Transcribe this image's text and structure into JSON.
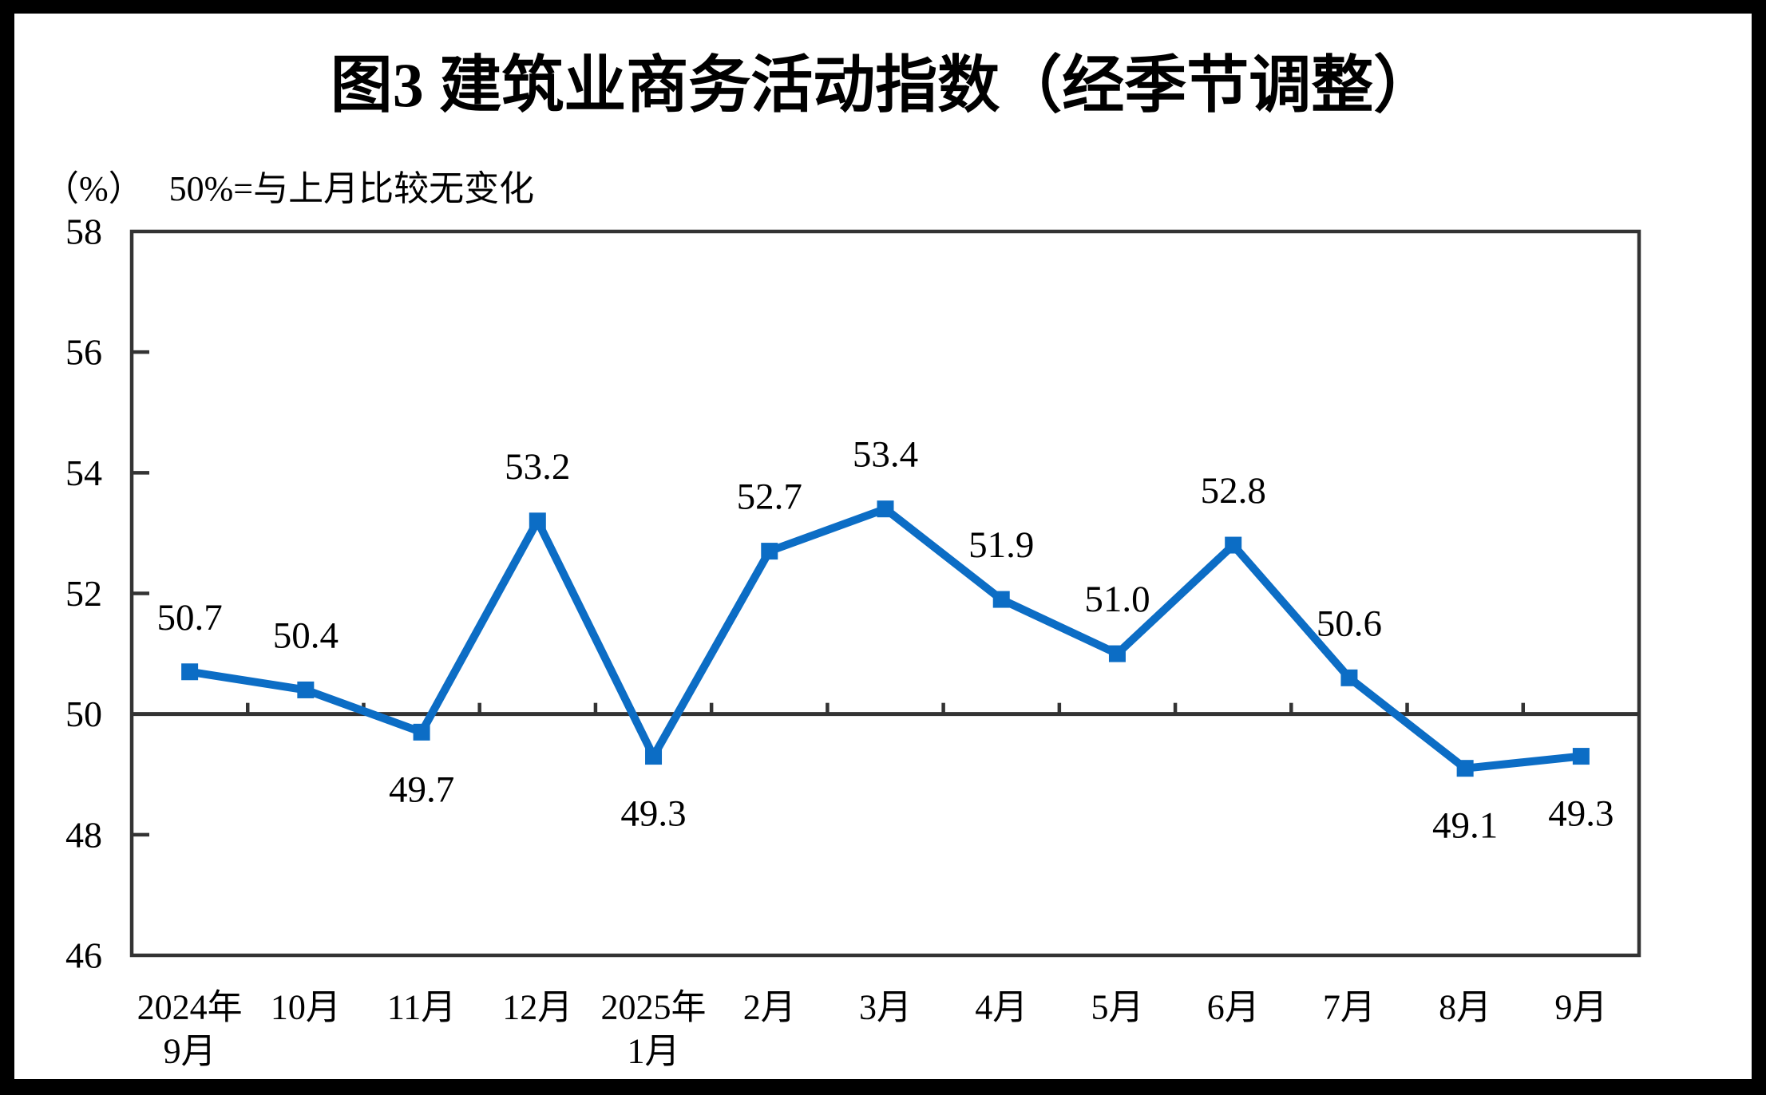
{
  "header": {
    "title": "图3  建筑业商务活动指数（经季节调整）",
    "unit": "（%）",
    "note": "50%=与上月比较无变化"
  },
  "chart_data": {
    "type": "line",
    "title": "图3  建筑业商务活动指数（经季节调整）",
    "unit_label": "（%）",
    "annotation": "50%=与上月比较无变化",
    "categories": [
      [
        "2024年",
        "9月"
      ],
      [
        "10月"
      ],
      [
        "11月"
      ],
      [
        "12月"
      ],
      [
        "2025年",
        "1月"
      ],
      [
        "2月"
      ],
      [
        "3月"
      ],
      [
        "4月"
      ],
      [
        "5月"
      ],
      [
        "6月"
      ],
      [
        "7月"
      ],
      [
        "8月"
      ],
      [
        "9月"
      ]
    ],
    "series": [
      {
        "name": "建筑业商务活动指数",
        "values": [
          50.7,
          50.4,
          49.7,
          53.2,
          49.3,
          52.7,
          53.4,
          51.9,
          51.0,
          52.8,
          50.6,
          49.1,
          49.3
        ],
        "color": "#0C6DC5",
        "marker": "square"
      }
    ],
    "data_label_positions": [
      "above",
      "above",
      "below",
      "above",
      "below",
      "above",
      "above",
      "above",
      "above",
      "above",
      "above",
      "below",
      "below"
    ],
    "ylim": [
      46,
      58
    ],
    "ytick_step": 2,
    "yticks": [
      46,
      48,
      50,
      52,
      54,
      56,
      58
    ],
    "reference_line": 50,
    "grid": false,
    "legend_position": "none",
    "axis_color": "#333333",
    "text_color": "#000000",
    "background_color": "#ffffff",
    "frame_color": "#000000"
  }
}
